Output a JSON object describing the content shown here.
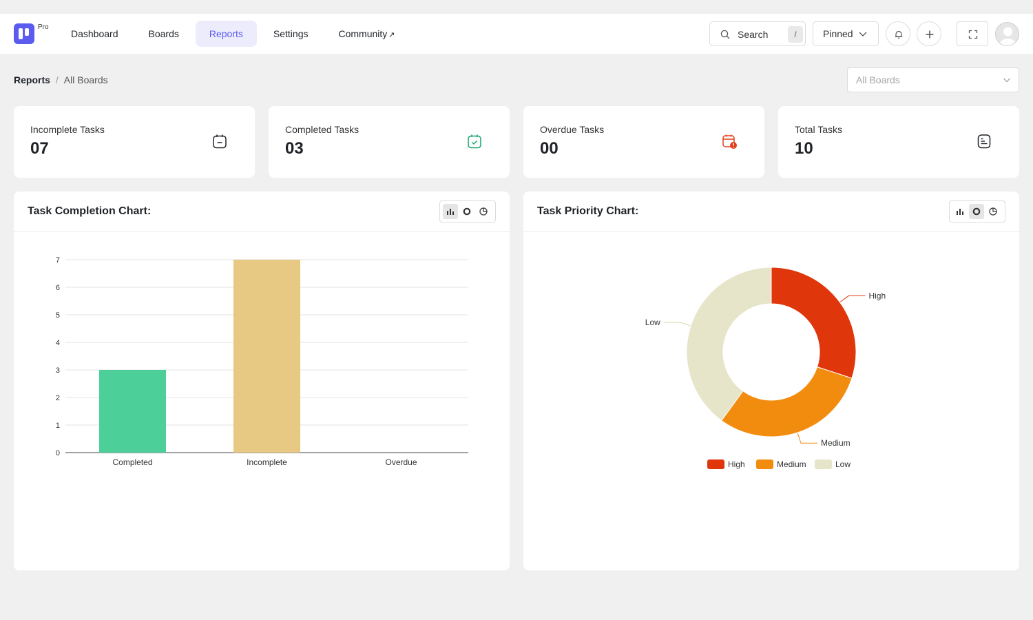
{
  "app": {
    "logo_badge": "Pro",
    "nav": [
      {
        "label": "Dashboard"
      },
      {
        "label": "Boards"
      },
      {
        "label": "Reports",
        "active": true
      },
      {
        "label": "Settings"
      },
      {
        "label": "Community",
        "external": true
      }
    ],
    "search": {
      "label": "Search",
      "shortcut": "/"
    },
    "pinned_label": "Pinned"
  },
  "breadcrumb": {
    "root": "Reports",
    "separator": "/",
    "current": "All Boards"
  },
  "board_filter": {
    "selected": "All Boards"
  },
  "stats": [
    {
      "label": "Incomplete Tasks",
      "value": "07",
      "icon": "calendar-minus-icon",
      "color": "#1f2328"
    },
    {
      "label": "Completed Tasks",
      "value": "03",
      "icon": "calendar-check-icon",
      "color": "#1aa56a"
    },
    {
      "label": "Overdue Tasks",
      "value": "00",
      "icon": "calendar-alert-icon",
      "color": "#e0401a"
    },
    {
      "label": "Total Tasks",
      "value": "10",
      "icon": "task-doc-icon",
      "color": "#1f2328"
    }
  ],
  "completion_chart": {
    "title": "Task Completion Chart:",
    "active_view": "bar"
  },
  "priority_chart": {
    "title": "Task Priority Chart:",
    "active_view": "donut"
  },
  "chart_data": [
    {
      "type": "bar",
      "title": "",
      "categories": [
        "Completed",
        "Incomplete",
        "Overdue"
      ],
      "values": [
        3,
        7,
        0
      ],
      "colors": [
        "#4ccf98",
        "#e7c983",
        "#e0e0e0"
      ],
      "ylim": [
        0,
        7
      ],
      "yticks": [
        0,
        1,
        2,
        3,
        4,
        5,
        6,
        7
      ],
      "xlabel": "",
      "ylabel": "",
      "grid": true
    },
    {
      "type": "pie",
      "donut": true,
      "title": "",
      "labels": [
        "High",
        "Medium",
        "Low"
      ],
      "values": [
        3,
        3,
        4
      ],
      "colors": [
        "#e0360c",
        "#f28c0f",
        "#e6e4c9"
      ],
      "legend": [
        "High",
        "Medium",
        "Low"
      ],
      "legend_position": "bottom"
    }
  ]
}
